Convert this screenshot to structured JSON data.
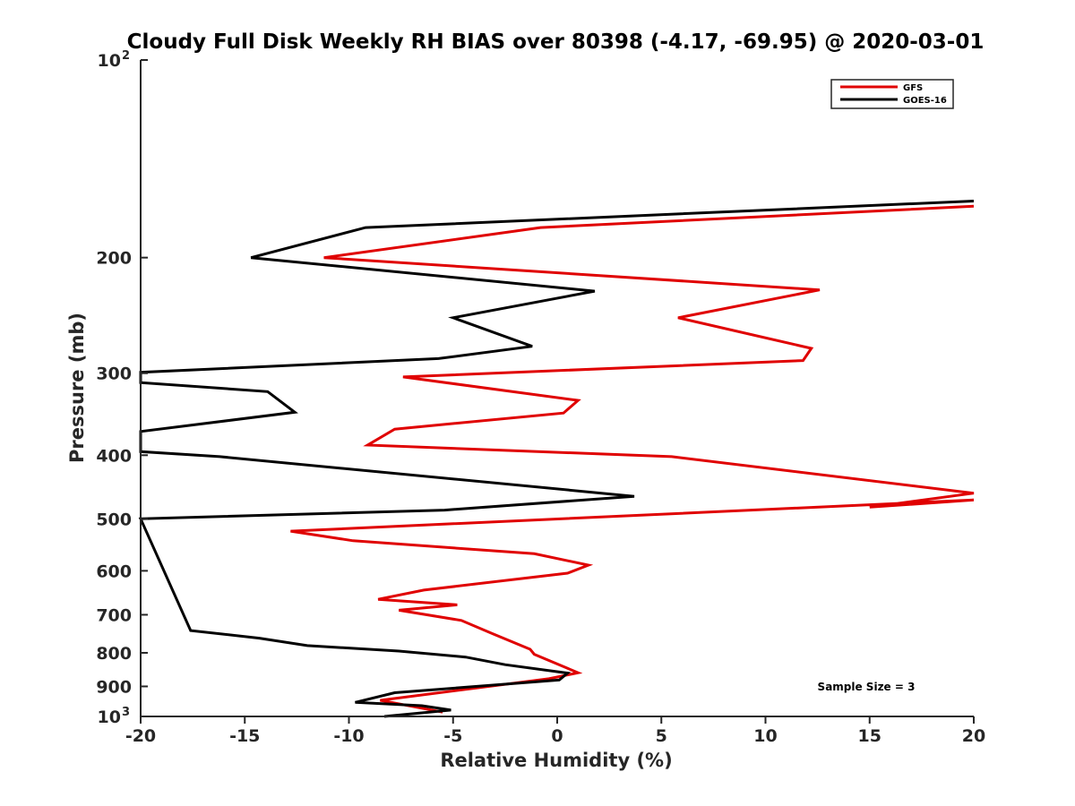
{
  "chart_data": {
    "type": "line",
    "title": "Cloudy Full Disk Weekly RH BIAS over 80398 (-4.17, -69.95) @ 2020-03-01",
    "xlabel": "Relative Humidity (%)",
    "ylabel": "Pressure (mb)",
    "xlim": [
      -20,
      20
    ],
    "ylim": [
      100,
      1000
    ],
    "yscale": "log",
    "yreversed": true,
    "xticks": [
      {
        "value": -20,
        "label": "-20"
      },
      {
        "value": -15,
        "label": "-15"
      },
      {
        "value": -10,
        "label": "-10"
      },
      {
        "value": -5,
        "label": "-5"
      },
      {
        "value": 0,
        "label": "0"
      },
      {
        "value": 5,
        "label": "5"
      },
      {
        "value": 10,
        "label": "10"
      },
      {
        "value": 15,
        "label": "15"
      },
      {
        "value": 20,
        "label": "20"
      }
    ],
    "yticks": [
      {
        "value": 100,
        "base": "10",
        "exp": "2"
      },
      {
        "value": 200,
        "label": "200"
      },
      {
        "value": 300,
        "label": "300"
      },
      {
        "value": 400,
        "label": "400"
      },
      {
        "value": 500,
        "label": "500"
      },
      {
        "value": 600,
        "label": "600"
      },
      {
        "value": 700,
        "label": "700"
      },
      {
        "value": 800,
        "label": "800"
      },
      {
        "value": 900,
        "label": "900"
      },
      {
        "value": 1000,
        "base": "10",
        "exp": "3"
      }
    ],
    "legend": {
      "position": "top-right"
    },
    "annotation": "Sample Size = 3",
    "series": [
      {
        "name": "GFS",
        "color": "#e00000",
        "points": [
          [
            20.0,
            167
          ],
          [
            -0.8,
            180
          ],
          [
            -11.2,
            200
          ],
          [
            12.6,
            224
          ],
          [
            5.8,
            247
          ],
          [
            12.2,
            275
          ],
          [
            11.8,
            287
          ],
          [
            -7.4,
            304
          ],
          [
            1.0,
            330
          ],
          [
            0.3,
            345
          ],
          [
            -7.8,
            365
          ],
          [
            -9.1,
            386
          ],
          [
            5.5,
            402
          ],
          [
            20.0,
            457
          ],
          [
            15.0,
            480
          ],
          [
            20.0,
            468
          ],
          [
            -12.8,
            522
          ],
          [
            -9.8,
            540
          ],
          [
            -1.1,
            565
          ],
          [
            1.5,
            588
          ],
          [
            0.5,
            605
          ],
          [
            -6.4,
            642
          ],
          [
            -8.6,
            663
          ],
          [
            -4.8,
            676
          ],
          [
            -7.6,
            689
          ],
          [
            -4.6,
            714
          ],
          [
            -3.1,
            748
          ],
          [
            -1.3,
            790
          ],
          [
            -1.1,
            804
          ],
          [
            1.0,
            858
          ],
          [
            -0.4,
            876
          ],
          [
            -8.5,
            945
          ],
          [
            -5.5,
            985
          ]
        ]
      },
      {
        "name": "GOES-16",
        "color": "#000000",
        "points": [
          [
            20.0,
            164
          ],
          [
            -9.2,
            180
          ],
          [
            -14.7,
            200
          ],
          [
            1.8,
            225
          ],
          [
            -5.0,
            247
          ],
          [
            -1.2,
            273
          ],
          [
            -5.7,
            285
          ],
          [
            -20.0,
            299
          ],
          [
            -20.0,
            310
          ],
          [
            -13.9,
            320
          ],
          [
            -12.6,
            344
          ],
          [
            -20.0,
            368
          ],
          [
            -20.0,
            395
          ],
          [
            -16.2,
            402
          ],
          [
            3.7,
            462
          ],
          [
            -5.4,
            485
          ],
          [
            -20.0,
            500
          ],
          [
            -17.6,
            740
          ],
          [
            -14.3,
            760
          ],
          [
            -12.0,
            780
          ],
          [
            -7.6,
            795
          ],
          [
            -4.4,
            812
          ],
          [
            -2.5,
            834
          ],
          [
            0.5,
            859
          ],
          [
            0.1,
            880
          ],
          [
            -7.8,
            920
          ],
          [
            -9.7,
            952
          ],
          [
            -6.5,
            963
          ],
          [
            -5.1,
            978
          ],
          [
            -8.3,
            1000
          ]
        ]
      }
    ]
  }
}
